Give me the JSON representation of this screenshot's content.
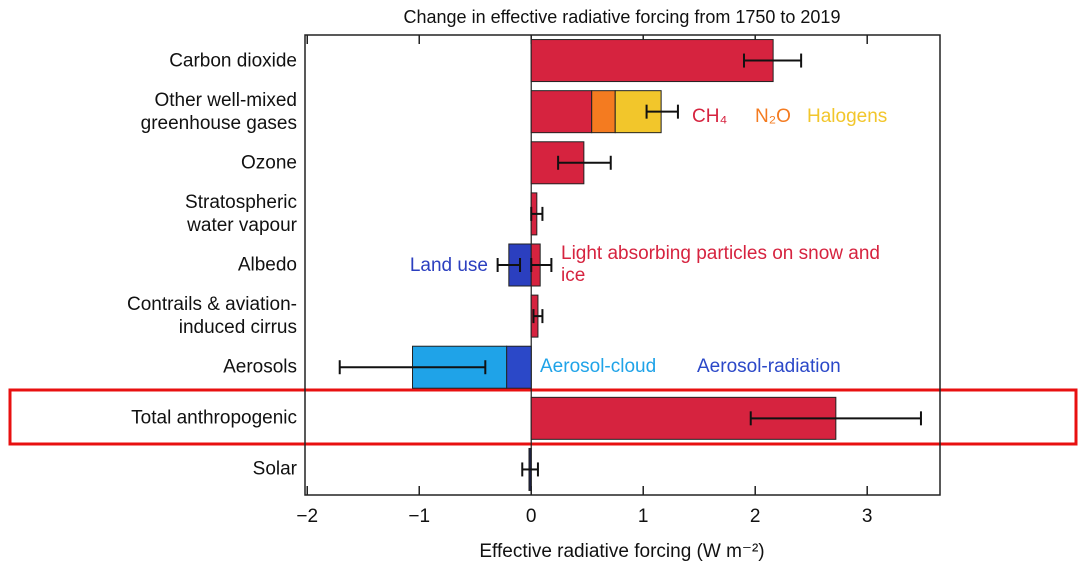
{
  "chart_data": {
    "type": "bar",
    "orientation": "horizontal",
    "stacked": true,
    "title": "Change in effective radiative forcing from 1750 to 2019",
    "x_label": "Effective radiative forcing (W m⁻²)",
    "categories": [
      "Carbon dioxide",
      "Other well-mixed\ngreenhouse gases",
      "Ozone",
      "Stratospheric\nwater vapour",
      "Albedo",
      "Contrails & aviation-\ninduced cirrus",
      "Aerosols",
      "Total anthropogenic",
      "Solar"
    ],
    "series": [
      {
        "color": "#d6233f",
        "values": [
          2.16,
          null,
          0.47,
          0.05,
          null,
          0.06,
          null,
          2.72,
          null
        ],
        "errors": [
          [
            1.9,
            2.41
          ],
          null,
          [
            0.24,
            0.71
          ],
          [
            0.0,
            0.1
          ],
          null,
          [
            0.02,
            0.1
          ],
          null,
          [
            1.96,
            3.48
          ],
          null
        ]
      },
      {
        "name": "CH₄",
        "color": "#d6233f",
        "values": [
          null,
          0.54,
          null,
          null,
          null,
          null,
          null,
          null,
          null
        ],
        "errors": [
          null,
          null,
          null,
          null,
          null,
          null,
          null,
          null,
          null
        ]
      },
      {
        "name": "N₂O",
        "color": "#f47b20",
        "values": [
          null,
          0.21,
          null,
          null,
          null,
          null,
          null,
          null,
          null
        ],
        "errors": [
          null,
          null,
          null,
          null,
          null,
          null,
          null,
          null,
          null
        ]
      },
      {
        "name": "Halogens",
        "color": "#f2c62b",
        "values": [
          null,
          0.41,
          null,
          null,
          null,
          null,
          null,
          null,
          null
        ],
        "errors": [
          null,
          [
            1.03,
            1.31
          ],
          null,
          null,
          null,
          null,
          null,
          null,
          null
        ]
      },
      {
        "name": "Land use",
        "color": "#2b3fbf",
        "values": [
          null,
          null,
          null,
          null,
          -0.2,
          null,
          null,
          null,
          null
        ],
        "errors": [
          null,
          null,
          null,
          null,
          [
            -0.3,
            -0.1
          ],
          null,
          null,
          null,
          null
        ]
      },
      {
        "name": "Light absorbing particles on snow and ice",
        "color": "#d6233f",
        "values": [
          null,
          null,
          null,
          null,
          0.08,
          null,
          null,
          null,
          null
        ],
        "errors": [
          null,
          null,
          null,
          null,
          [
            0.0,
            0.18
          ],
          null,
          null,
          null,
          null
        ]
      },
      {
        "name": "Aerosol-radiation",
        "color": "#2b48c8",
        "values": [
          null,
          null,
          null,
          null,
          null,
          null,
          -0.22,
          null,
          null
        ],
        "errors": [
          null,
          null,
          null,
          null,
          null,
          null,
          null,
          null,
          null
        ]
      },
      {
        "name": "Aerosol-cloud",
        "color": "#1fa3e8",
        "values": [
          null,
          null,
          null,
          null,
          null,
          null,
          -0.84,
          null,
          null
        ],
        "errors": [
          null,
          null,
          null,
          null,
          null,
          null,
          [
            -1.71,
            -0.41
          ],
          null,
          null
        ]
      },
      {
        "color": "#1a1f4a",
        "values": [
          null,
          null,
          null,
          null,
          null,
          null,
          null,
          null,
          -0.02
        ],
        "errors": [
          null,
          null,
          null,
          null,
          null,
          null,
          null,
          null,
          [
            -0.08,
            0.06
          ]
        ]
      }
    ],
    "xlim": [
      -2.02,
      3.65
    ],
    "xticks": [
      {
        "value": -2,
        "label": "−2"
      },
      {
        "value": -1,
        "label": "−1"
      },
      0,
      1,
      2,
      3
    ]
  }
}
